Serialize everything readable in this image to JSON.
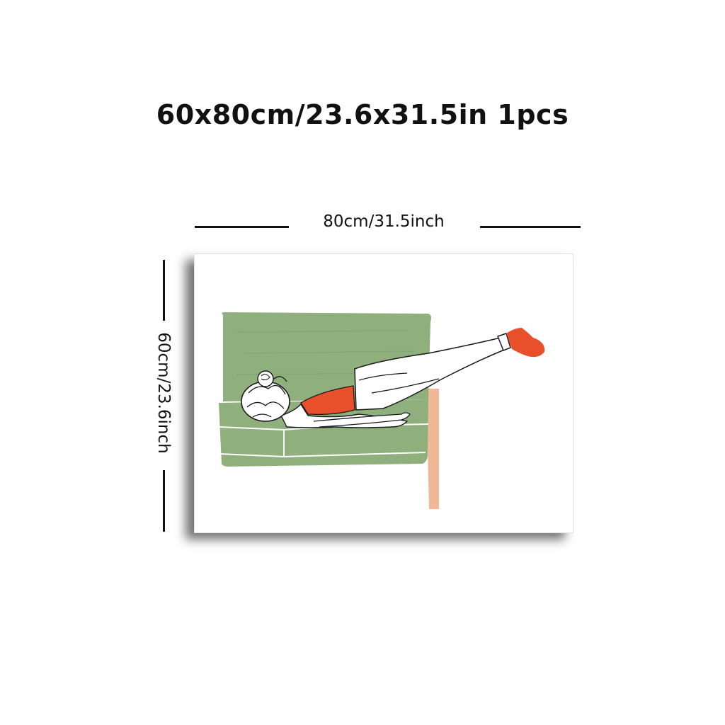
{
  "product": {
    "size_title": "60x80cm/23.6x31.5in 1pcs",
    "width_label": "80cm/31.5inch",
    "height_label": "60cm/23.6inch"
  },
  "artwork": {
    "subject": "woman-lying-on-sofa-illustration",
    "colors": {
      "sofa": "#8fb07c",
      "sofa_dark": "#7c9e6b",
      "outfit": "#e8502c",
      "table_leg": "#f0b896",
      "line": "#1a1a1a"
    }
  }
}
